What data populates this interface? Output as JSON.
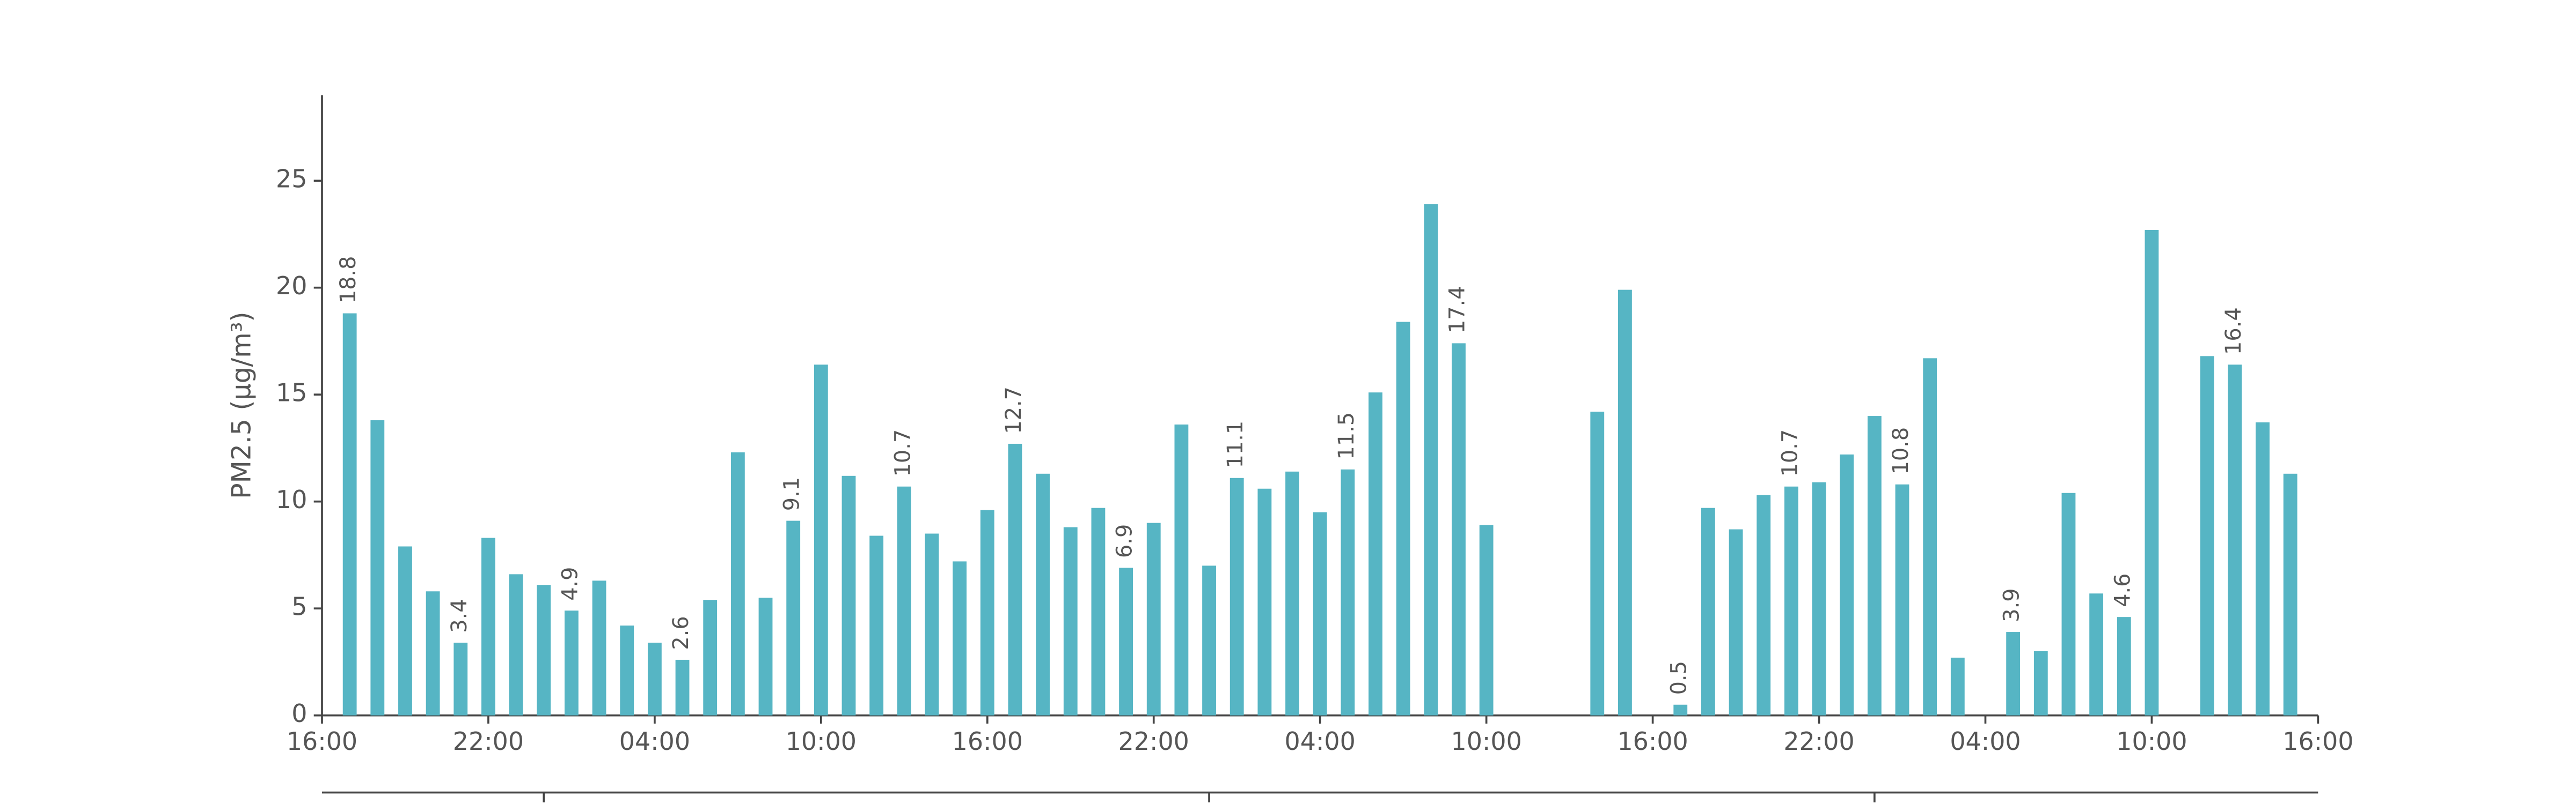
{
  "chart_data": {
    "type": "bar",
    "y_label": "PM2.5 (μg/m³)",
    "x": [
      1,
      2,
      3,
      4,
      5,
      6,
      7,
      8,
      9,
      10,
      11,
      12,
      13,
      14,
      15,
      16,
      17,
      18,
      19,
      20,
      21,
      22,
      23,
      24,
      25,
      26,
      27,
      28,
      29,
      30,
      31,
      32,
      33,
      34,
      35,
      36,
      37,
      38,
      39,
      40,
      41,
      42,
      43,
      44,
      45,
      46,
      47,
      48,
      49,
      50,
      51,
      52,
      53,
      54,
      55,
      56,
      57,
      58,
      59,
      60,
      61,
      62,
      63,
      64,
      65,
      66,
      67,
      68,
      69,
      70,
      71
    ],
    "values": [
      18.8,
      13.8,
      7.9,
      5.8,
      3.4,
      8.3,
      6.6,
      6.1,
      4.9,
      6.3,
      4.2,
      3.4,
      2.6,
      5.4,
      12.3,
      5.5,
      9.1,
      16.4,
      11.2,
      8.4,
      10.7,
      8.5,
      7.2,
      9.6,
      12.7,
      11.3,
      8.8,
      9.7,
      6.9,
      9.0,
      13.6,
      7.0,
      11.1,
      10.6,
      11.4,
      9.5,
      11.5,
      15.1,
      18.4,
      23.9,
      17.4,
      8.9,
      null,
      null,
      null,
      14.2,
      19.9,
      null,
      0.5,
      9.7,
      8.7,
      10.3,
      10.7,
      10.9,
      12.2,
      14.0,
      10.8,
      16.7,
      2.7,
      null,
      3.9,
      3.0,
      10.4,
      5.7,
      4.6,
      22.7,
      null,
      16.8,
      16.4,
      13.7,
      11.3
    ],
    "value_labels": [
      "18.8",
      null,
      null,
      null,
      "3.4",
      null,
      null,
      null,
      "4.9",
      null,
      null,
      null,
      "2.6",
      null,
      null,
      null,
      "9.1",
      null,
      null,
      null,
      "10.7",
      null,
      null,
      null,
      "12.7",
      null,
      null,
      null,
      "6.9",
      null,
      null,
      null,
      "11.1",
      null,
      null,
      null,
      "11.5",
      null,
      null,
      null,
      "17.4",
      null,
      null,
      null,
      null,
      null,
      null,
      null,
      "0.5",
      null,
      null,
      null,
      "10.7",
      null,
      null,
      null,
      "10.8",
      null,
      null,
      null,
      "3.9",
      null,
      null,
      null,
      "4.6",
      null,
      null,
      null,
      "16.4",
      null,
      null
    ],
    "color": "#56b5c4",
    "xlim": [
      0,
      72
    ],
    "xticks": [
      {
        "value": 0,
        "label": "16:00"
      },
      {
        "value": 6,
        "label": "22:00"
      },
      {
        "value": 12,
        "label": "04:00"
      },
      {
        "value": 18,
        "label": "10:00"
      },
      {
        "value": 24,
        "label": "16:00"
      },
      {
        "value": 30,
        "label": "22:00"
      },
      {
        "value": 36,
        "label": "04:00"
      },
      {
        "value": 42,
        "label": "10:00"
      },
      {
        "value": 48,
        "label": "16:00"
      },
      {
        "value": 54,
        "label": "22:00"
      },
      {
        "value": 60,
        "label": "04:00"
      },
      {
        "value": 66,
        "label": "10:00"
      },
      {
        "value": 72,
        "label": "16:00"
      }
    ],
    "ylim": [
      0,
      29
    ],
    "yticks": [
      0,
      5,
      10,
      15,
      20,
      25
    ],
    "grid": false
  }
}
